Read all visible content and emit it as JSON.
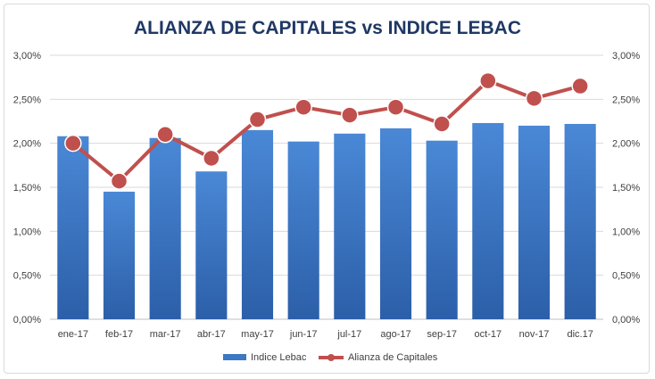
{
  "chart_data": {
    "type": "bar",
    "title": "ALIANZA DE CAPITALES vs INDICE LEBAC",
    "categories": [
      "ene-17",
      "feb-17",
      "mar-17",
      "abr-17",
      "may-17",
      "jun-17",
      "jul-17",
      "ago-17",
      "sep-17",
      "oct-17",
      "nov-17",
      "dic.17"
    ],
    "series": [
      {
        "name": "Indice Lebac",
        "type": "bar",
        "color": "#3c78c4",
        "values": [
          2.08,
          1.45,
          2.06,
          1.68,
          2.15,
          2.02,
          2.11,
          2.17,
          2.03,
          2.23,
          2.2,
          2.22
        ]
      },
      {
        "name": "Alianza de Capitales",
        "type": "line",
        "color": "#c0504d",
        "values": [
          2.0,
          1.57,
          2.1,
          1.83,
          2.27,
          2.41,
          2.32,
          2.41,
          2.22,
          2.71,
          2.51,
          2.65
        ]
      }
    ],
    "y_ticks": [
      "0,00%",
      "0,50%",
      "1,00%",
      "1,50%",
      "2,00%",
      "2,50%",
      "3,00%"
    ],
    "y2_ticks": [
      "0,00%",
      "0,50%",
      "1,00%",
      "1,50%",
      "2,00%",
      "2,50%",
      "3,00%"
    ],
    "ylim": [
      0,
      3
    ],
    "y2lim": [
      0,
      3
    ],
    "grid": true,
    "legend_position": "bottom"
  }
}
